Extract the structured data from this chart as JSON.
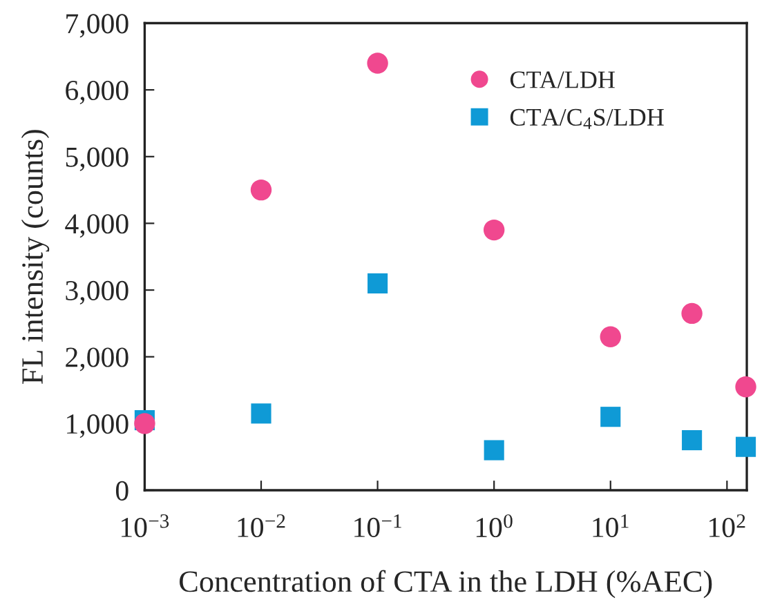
{
  "chart_data": {
    "type": "scatter",
    "xlabel": "Concentration of CTA in the LDH (%AEC)",
    "ylabel": "FL intensity (counts)",
    "x": [
      0.001,
      0.01,
      0.1,
      1,
      10,
      50,
      145
    ],
    "series": [
      {
        "name": "CTA/LDH",
        "color": "#f0488f",
        "marker": "circle",
        "values": [
          1000,
          4500,
          6400,
          3900,
          2300,
          2650,
          1550
        ]
      },
      {
        "name": "CTA/C$_{4}$S/LDH",
        "color": "#0f9ad6",
        "marker": "square",
        "values": [
          1050,
          1150,
          3100,
          600,
          1100,
          750,
          650
        ]
      }
    ],
    "log": "x",
    "xlim": [
      0.001,
      148
    ],
    "ylim": [
      0,
      7000
    ],
    "xticks": [
      {
        "value": 0.001,
        "label": "10$^{−3}$"
      },
      {
        "value": 0.01,
        "label": "10$^{−2}$"
      },
      {
        "value": 0.1,
        "label": "10$^{−1}$"
      },
      {
        "value": 1,
        "label": "10$^{0}$"
      },
      {
        "value": 10,
        "label": "10$^{1}$"
      },
      {
        "value": 100,
        "label": "10$^{2}$"
      }
    ],
    "yticks": [
      0,
      {
        "value": 1000,
        "label": "1,000"
      },
      {
        "value": 2000,
        "label": "2,000"
      },
      {
        "value": 3000,
        "label": "3,000"
      },
      {
        "value": 4000,
        "label": "4,000"
      },
      {
        "value": 5000,
        "label": "5,000"
      },
      {
        "value": 6000,
        "label": "6,000"
      },
      {
        "value": 7000,
        "label": "7,000"
      }
    ],
    "grid": false,
    "legend": "top right"
  }
}
